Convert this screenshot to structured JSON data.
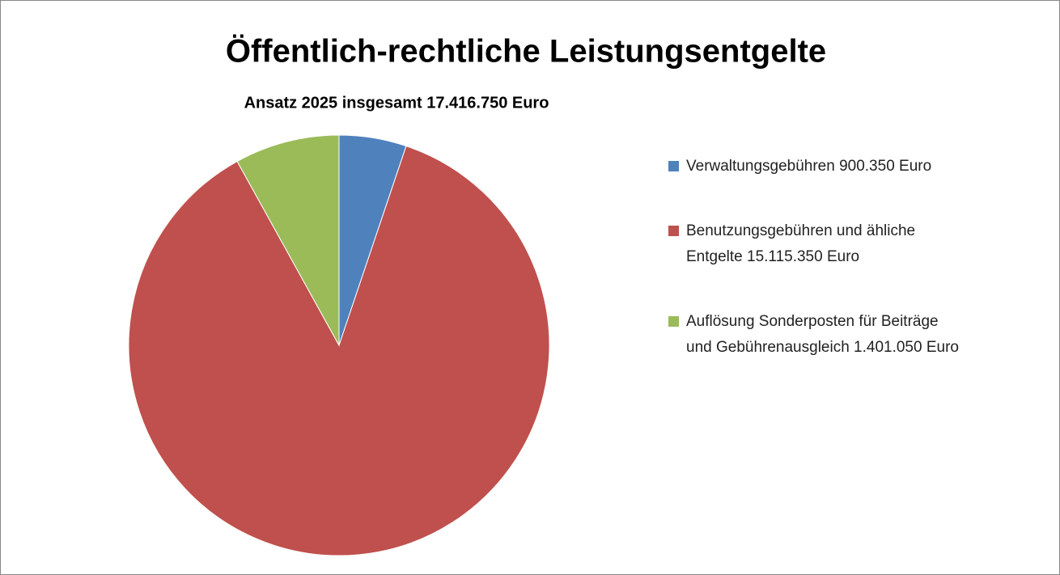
{
  "chart_data": {
    "type": "pie",
    "title": "Öffentlich-rechtliche Leistungsentgelte",
    "subtitle": "Ansatz 2025 insgesamt 17.416.750 Euro",
    "categories": [
      "Verwaltungsgebühren 900.350 Euro",
      "Benutzungsgebühren und ähliche Entgelte 15.115.350 Euro",
      "Auflösung Sonderposten für Beiträge und Gebührenausgleich 1.401.050 Euro"
    ],
    "values": [
      900350,
      15115350,
      1401050
    ],
    "colors": [
      "#4f81bd",
      "#c0504d",
      "#9bbb59"
    ],
    "legend": "right"
  }
}
